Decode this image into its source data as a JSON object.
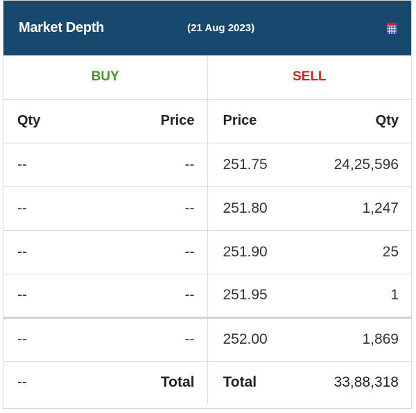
{
  "header": {
    "title": "Market Depth",
    "date": "(21 Aug 2023)",
    "calendar_icon": "calendar-icon",
    "background": "#17486e"
  },
  "sides": {
    "buy": "BUY",
    "sell": "SELL",
    "buy_color": "#3a9b1a",
    "sell_color": "#e01b1b"
  },
  "columns": {
    "buy_qty": "Qty",
    "buy_price": "Price",
    "sell_price": "Price",
    "sell_qty": "Qty"
  },
  "rows": [
    {
      "buy_qty": "--",
      "buy_price": "--",
      "sell_price": "251.75",
      "sell_qty": "24,25,596"
    },
    {
      "buy_qty": "--",
      "buy_price": "--",
      "sell_price": "251.80",
      "sell_qty": "1,247"
    },
    {
      "buy_qty": "--",
      "buy_price": "--",
      "sell_price": "251.90",
      "sell_qty": "25"
    },
    {
      "buy_qty": "--",
      "buy_price": "--",
      "sell_price": "251.95",
      "sell_qty": "1"
    },
    {
      "buy_qty": "--",
      "buy_price": "--",
      "sell_price": "252.00",
      "sell_qty": "1,869"
    }
  ],
  "totals": {
    "buy_qty": "--",
    "buy_label": "Total",
    "sell_label": "Total",
    "sell_qty": "33,88,318"
  }
}
